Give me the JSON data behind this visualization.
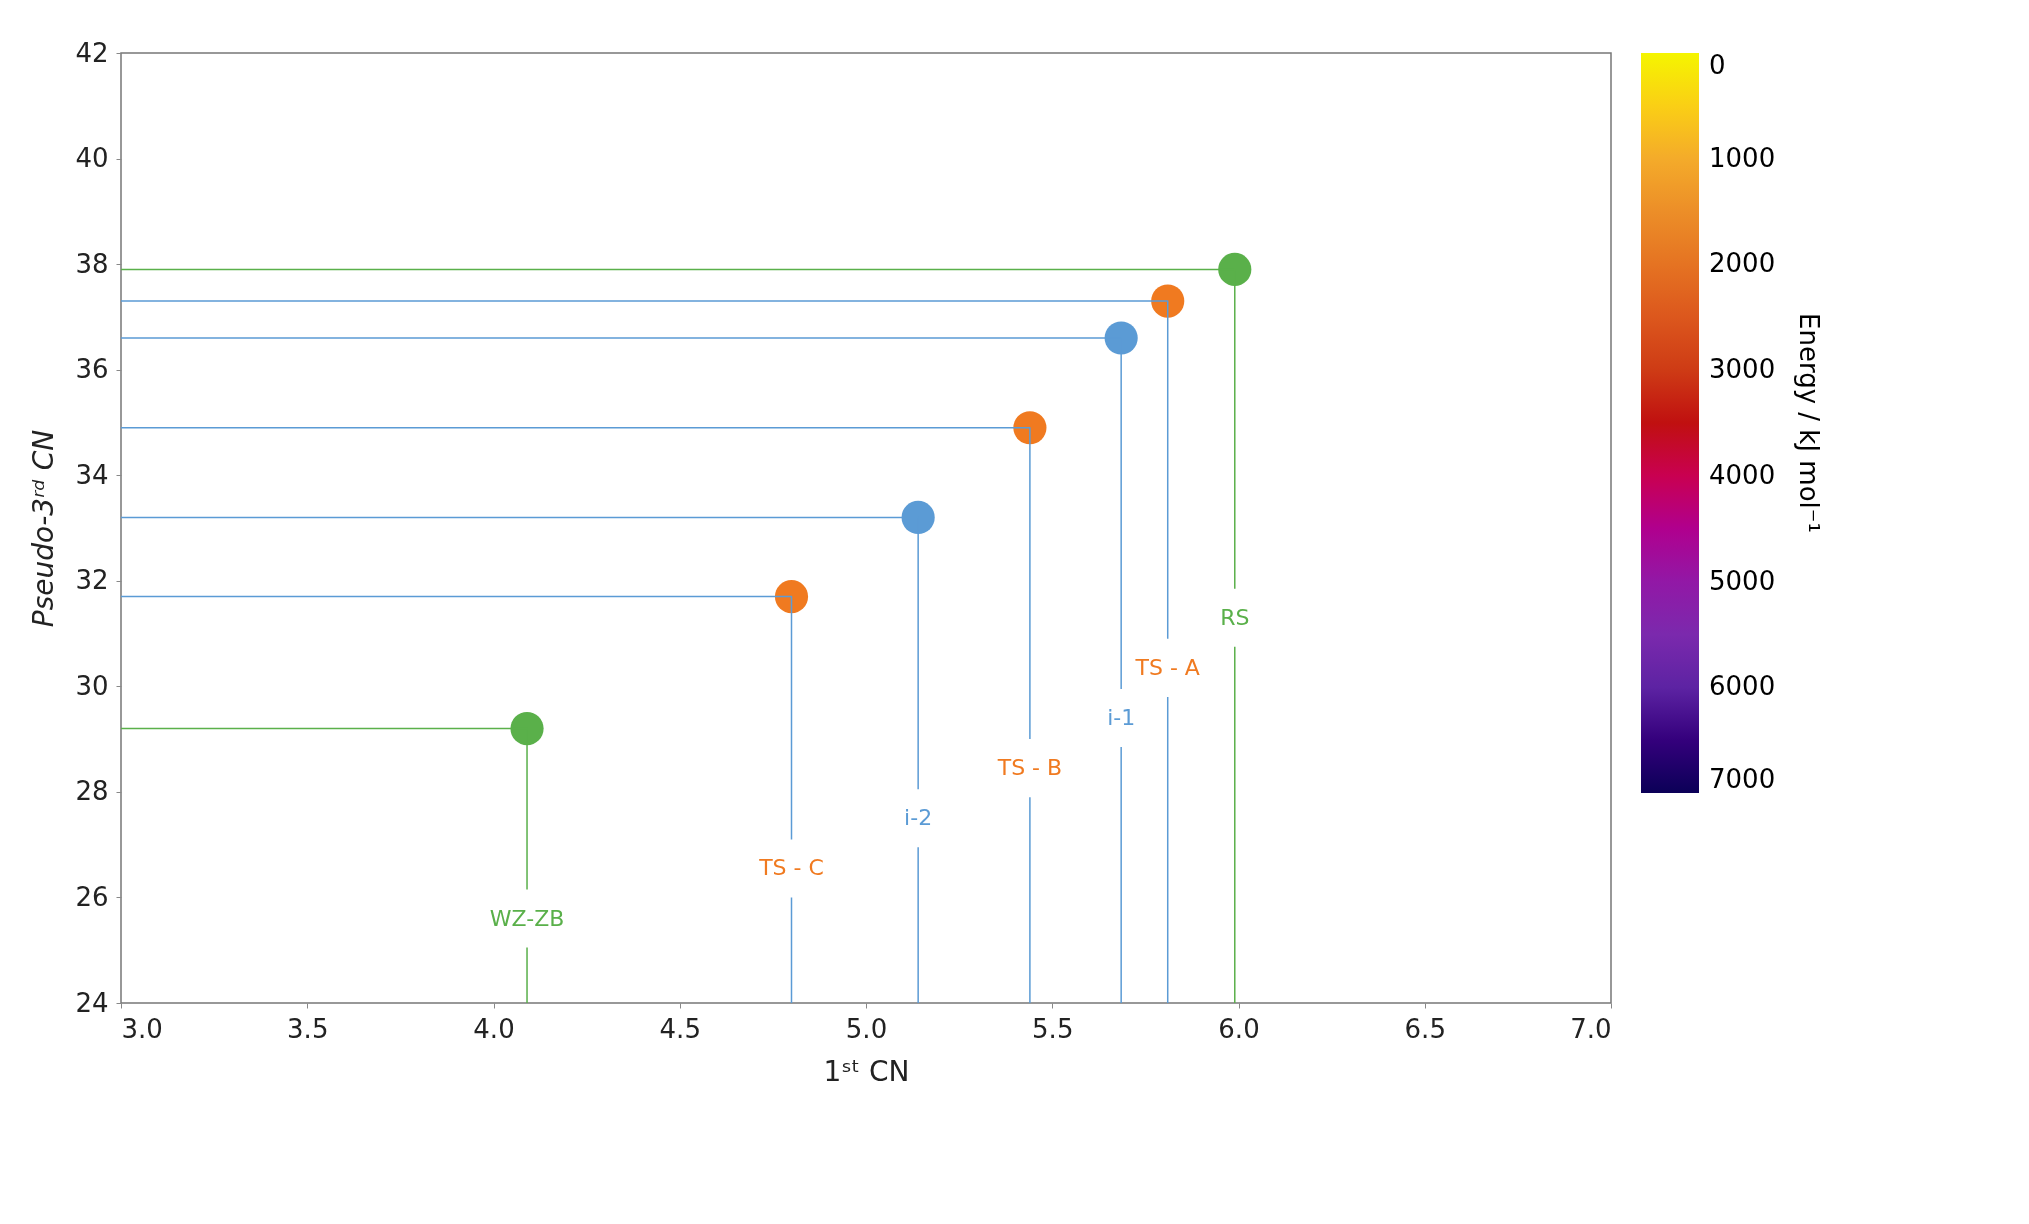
{
  "chart_data": {
    "type": "scatter",
    "xlabel": "1ˢᵗ CN",
    "ylabel": "Pseudo-3ʳᵈ CN",
    "clabel": "Energy / kJ mol⁻¹",
    "series": [
      {
        "color": "#5ab04a",
        "x": [
          4.09,
          5.99
        ],
        "values": [
          29.2,
          37.9
        ]
      },
      {
        "color": "#f07a20",
        "x": [
          4.8,
          5.44,
          5.81
        ],
        "values": [
          31.7,
          34.9,
          37.3
        ]
      },
      {
        "color": "#5b9bd5",
        "x": [
          5.14,
          5.685
        ],
        "values": [
          33.2,
          36.6
        ]
      },
      {
        "type": "line",
        "marker": "none",
        "color": "#5ab04a",
        "x": [
          3.0,
          4.09,
          4.09
        ],
        "values": [
          29.2,
          29.2,
          24
        ]
      },
      {
        "type": "line",
        "marker": "none",
        "color": "#5b9bd5",
        "x": [
          3.0,
          4.8,
          4.8
        ],
        "values": [
          31.7,
          31.7,
          24
        ]
      },
      {
        "type": "line",
        "marker": "none",
        "color": "#5b9bd5",
        "x": [
          3.0,
          5.14,
          5.14
        ],
        "values": [
          33.2,
          33.2,
          24
        ]
      },
      {
        "type": "line",
        "marker": "none",
        "color": "#5b9bd5",
        "x": [
          3.0,
          5.44,
          5.44
        ],
        "values": [
          34.9,
          34.9,
          24
        ]
      },
      {
        "type": "line",
        "marker": "none",
        "color": "#5b9bd5",
        "x": [
          3.0,
          5.685,
          5.685
        ],
        "values": [
          36.6,
          36.6,
          24
        ]
      },
      {
        "type": "line",
        "marker": "none",
        "color": "#5b9bd5",
        "x": [
          3.0,
          5.81,
          5.81
        ],
        "values": [
          37.3,
          37.3,
          24
        ]
      },
      {
        "type": "line",
        "marker": "none",
        "color": "#5ab04a",
        "x": [
          3.0,
          5.99,
          5.99
        ],
        "values": [
          37.9,
          37.9,
          24
        ]
      }
    ],
    "annotations": [
      "WZ-ZB",
      "TS - C",
      "i-2",
      "TS - B",
      "i-1",
      "TS - A",
      "RS"
    ],
    "xlim": [
      3.0,
      7.0
    ],
    "xticks": [
      {
        "value": 3.0,
        "label": "3.0"
      },
      3.5,
      {
        "value": 4.0,
        "label": "4.0"
      },
      4.5,
      {
        "value": 5.0,
        "label": "5.0"
      },
      5.5,
      {
        "value": 6.0,
        "label": "6.0"
      },
      6.5,
      {
        "value": 7.0,
        "label": "7.0"
      }
    ],
    "ylim": [
      24,
      42
    ],
    "yticks": [
      24,
      26,
      28,
      30,
      32,
      34,
      36,
      38,
      40,
      42
    ],
    "clim": [
      7000,
      0
    ],
    "cticks": [
      0,
      1000,
      2000,
      3000,
      4000,
      5000,
      6000,
      7000
    ],
    "marker": "circle"
  }
}
